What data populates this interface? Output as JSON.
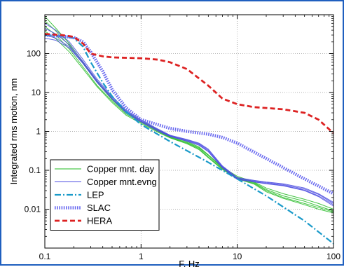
{
  "chart_data": {
    "type": "line",
    "xlabel": "F, Hz",
    "ylabel": "Integrated rms motion, nm",
    "xscale": "log",
    "yscale": "log",
    "xlim": [
      0.1,
      100
    ],
    "ylim": [
      0.001,
      1000
    ],
    "x_ticks": [
      0.1,
      1,
      10,
      100
    ],
    "x_tick_labels": [
      "0.1",
      "1",
      "10",
      "100"
    ],
    "y_ticks": [
      0.01,
      0.1,
      1,
      10,
      100
    ],
    "y_tick_labels": [
      "0.01",
      "0.1",
      "1",
      "10",
      "100"
    ],
    "grid": true,
    "legend_position": "bottom-left",
    "series": [
      {
        "name": "Copper mnt. day",
        "color": "#22bb22",
        "style": "solid-thin",
        "curves": [
          {
            "x": [
              0.1,
              0.13,
              0.18,
              0.25,
              0.35,
              0.5,
              0.7,
              1,
              1.5,
              2,
              3,
              4,
              5,
              7,
              10,
              15,
              20,
              30,
              50,
              70,
              100
            ],
            "y": [
              900,
              450,
              180,
              60,
              20,
              7,
              3.2,
              1.9,
              1.1,
              0.75,
              0.55,
              0.4,
              0.25,
              0.12,
              0.07,
              0.05,
              0.035,
              0.025,
              0.018,
              0.014,
              0.01
            ]
          },
          {
            "x": [
              0.1,
              0.13,
              0.18,
              0.25,
              0.35,
              0.5,
              0.7,
              1,
              1.5,
              2,
              3,
              4,
              5,
              7,
              10,
              15,
              20,
              30,
              50,
              70,
              100
            ],
            "y": [
              700,
              380,
              160,
              55,
              18,
              6.5,
              3,
              1.8,
              1.05,
              0.72,
              0.52,
              0.38,
              0.24,
              0.115,
              0.065,
              0.048,
              0.032,
              0.022,
              0.016,
              0.012,
              0.009
            ]
          },
          {
            "x": [
              0.1,
              0.13,
              0.18,
              0.25,
              0.35,
              0.5,
              0.7,
              1,
              1.5,
              2,
              3,
              4,
              5,
              7,
              10,
              15,
              20,
              30,
              50,
              70,
              100
            ],
            "y": [
              500,
              300,
              130,
              45,
              15,
              6,
              2.8,
              1.7,
              1,
              0.7,
              0.5,
              0.36,
              0.22,
              0.11,
              0.062,
              0.046,
              0.03,
              0.02,
              0.014,
              0.011,
              0.0085
            ]
          },
          {
            "x": [
              0.1,
              0.13,
              0.18,
              0.25,
              0.35,
              0.5,
              0.7,
              1,
              1.5,
              2,
              3,
              4,
              5,
              7,
              10,
              15,
              20,
              30,
              50,
              70,
              100
            ],
            "y": [
              380,
              240,
              110,
              40,
              14,
              5.5,
              2.6,
              1.6,
              0.95,
              0.68,
              0.48,
              0.34,
              0.21,
              0.105,
              0.06,
              0.044,
              0.028,
              0.019,
              0.013,
              0.01,
              0.008
            ]
          }
        ]
      },
      {
        "name": "Copper mnt.evng",
        "color": "#4a4ae0",
        "style": "solid-thin",
        "curves": [
          {
            "x": [
              0.1,
              0.13,
              0.18,
              0.25,
              0.35,
              0.5,
              0.7,
              1,
              1.5,
              2,
              3,
              4,
              5,
              7,
              10,
              15,
              20,
              30,
              50,
              70,
              100
            ],
            "y": [
              600,
              400,
              200,
              70,
              22,
              8,
              3.5,
              2,
              1.15,
              0.8,
              0.62,
              0.5,
              0.35,
              0.13,
              0.065,
              0.055,
              0.05,
              0.045,
              0.035,
              0.025,
              0.015
            ]
          },
          {
            "x": [
              0.1,
              0.13,
              0.18,
              0.25,
              0.35,
              0.5,
              0.7,
              1,
              1.5,
              2,
              3,
              4,
              5,
              7,
              10,
              15,
              20,
              30,
              50,
              70,
              100
            ],
            "y": [
              450,
              320,
              170,
              62,
              20,
              7.5,
              3.3,
              1.9,
              1.1,
              0.78,
              0.6,
              0.48,
              0.33,
              0.125,
              0.062,
              0.053,
              0.048,
              0.043,
              0.033,
              0.024,
              0.014
            ]
          },
          {
            "x": [
              0.1,
              0.13,
              0.18,
              0.25,
              0.35,
              0.5,
              0.7,
              1,
              1.5,
              2,
              3,
              4,
              5,
              7,
              10,
              15,
              20,
              30,
              50,
              70,
              100
            ],
            "y": [
              300,
              250,
              150,
              58,
              19,
              7,
              3.1,
              1.8,
              1.05,
              0.76,
              0.58,
              0.46,
              0.31,
              0.12,
              0.06,
              0.051,
              0.046,
              0.041,
              0.031,
              0.022,
              0.013
            ]
          },
          {
            "x": [
              0.1,
              0.13,
              0.18,
              0.25,
              0.35,
              0.5,
              0.7,
              1,
              1.5,
              2,
              3,
              4,
              5,
              7,
              10,
              15,
              20,
              30,
              50,
              70,
              100
            ],
            "y": [
              250,
              220,
              140,
              55,
              18,
              6.8,
              3,
              1.75,
              1.02,
              0.74,
              0.56,
              0.44,
              0.3,
              0.115,
              0.058,
              0.05,
              0.045,
              0.04,
              0.03,
              0.021,
              0.012
            ]
          }
        ]
      },
      {
        "name": "LEP",
        "color": "#1a9ac9",
        "style": "dash-dot",
        "x": [
          0.1,
          0.15,
          0.2,
          0.25,
          0.3,
          0.4,
          0.5,
          0.7,
          1,
          2,
          5,
          10,
          20,
          50,
          100
        ],
        "y": [
          300,
          280,
          250,
          150,
          60,
          18,
          8,
          3.2,
          1.5,
          0.55,
          0.16,
          0.06,
          0.022,
          0.005,
          0.0013
        ]
      },
      {
        "name": "SLAC",
        "color": "#6b6bf0",
        "style": "dotted-thick",
        "x": [
          0.1,
          0.15,
          0.2,
          0.25,
          0.3,
          0.4,
          0.5,
          0.7,
          1,
          2,
          3,
          5,
          7,
          10,
          20,
          50,
          100
        ],
        "y": [
          300,
          280,
          260,
          200,
          110,
          35,
          12,
          4,
          2,
          1.2,
          1,
          0.85,
          0.7,
          0.5,
          0.2,
          0.06,
          0.025
        ]
      },
      {
        "name": "HERA",
        "color": "#dd2222",
        "style": "dashed-thick",
        "x": [
          0.1,
          0.15,
          0.2,
          0.25,
          0.3,
          0.4,
          0.5,
          0.7,
          1,
          1.5,
          2,
          3,
          5,
          7,
          10,
          15,
          20,
          30,
          50,
          70,
          100
        ],
        "y": [
          320,
          300,
          270,
          180,
          100,
          85,
          80,
          78,
          76,
          70,
          60,
          40,
          15,
          7,
          5,
          4.2,
          4,
          3.7,
          3,
          2,
          0.9
        ]
      }
    ]
  }
}
